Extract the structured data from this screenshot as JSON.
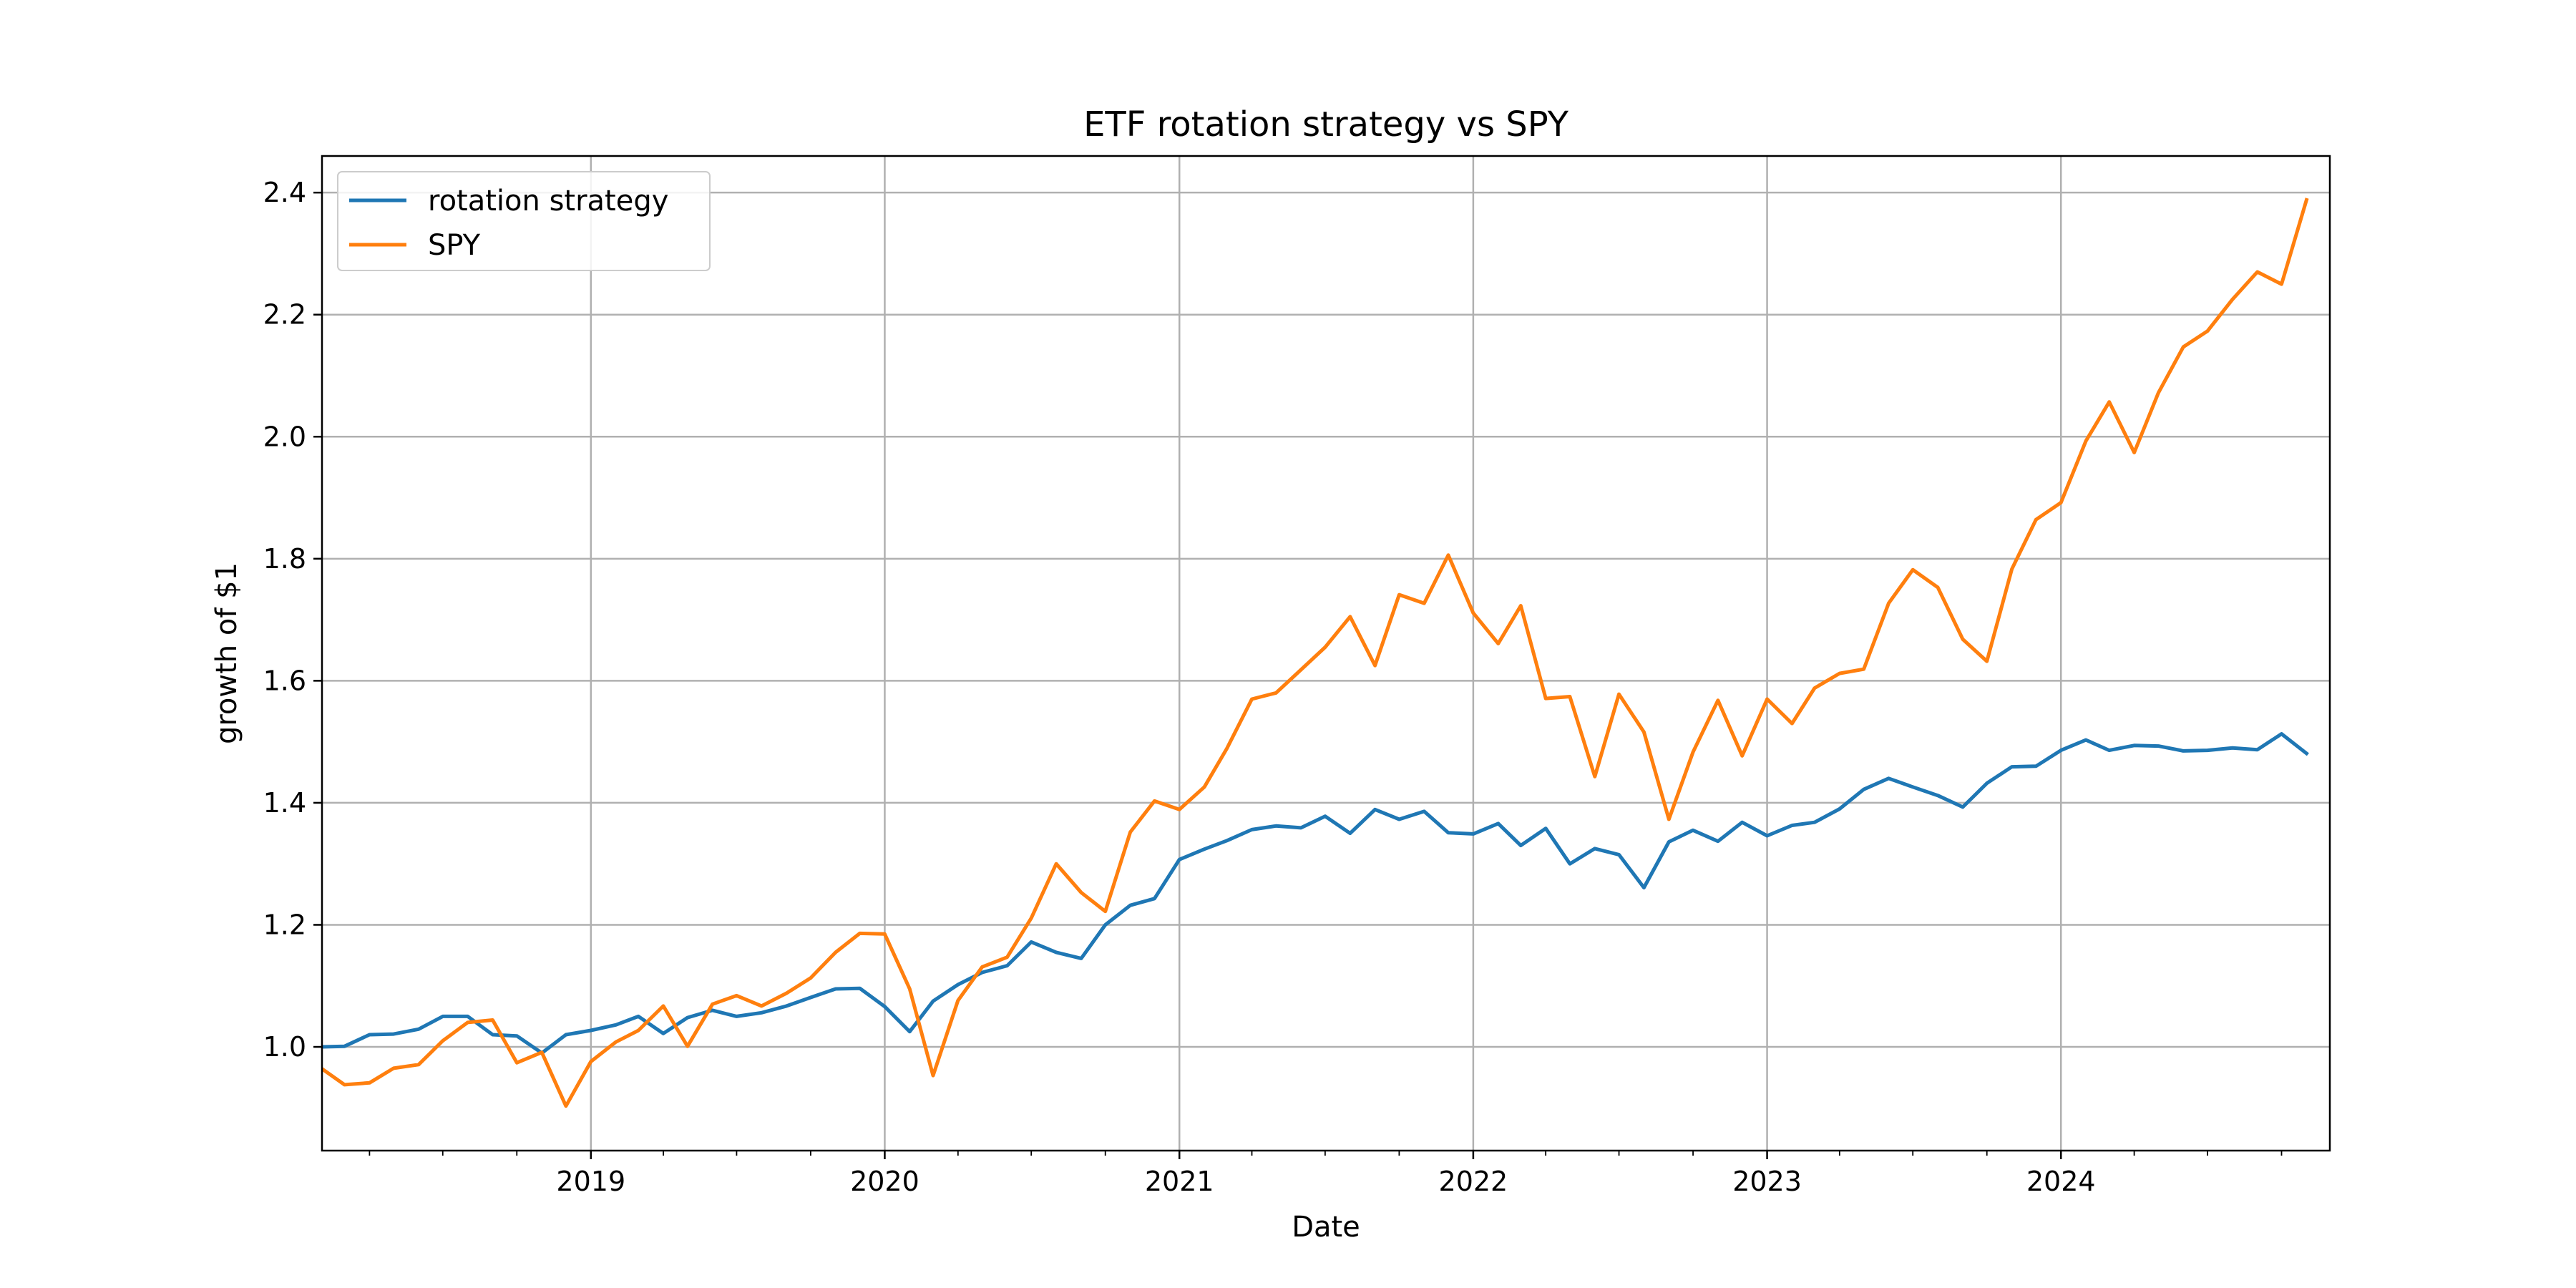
{
  "chart_data": {
    "type": "line",
    "title": "ETF rotation strategy vs SPY",
    "xlabel": "Date",
    "ylabel": "growth of $1",
    "xlim": [
      "2018-02-01",
      "2024-11-30"
    ],
    "ylim": [
      0.83,
      2.46
    ],
    "x_ticks": [
      "2019",
      "2020",
      "2021",
      "2022",
      "2023",
      "2024"
    ],
    "y_ticks": [
      "1.0",
      "1.2",
      "1.4",
      "1.6",
      "1.8",
      "2.0",
      "2.2",
      "2.4"
    ],
    "grid": true,
    "legend_position": "upper left",
    "x": [
      "2018-02",
      "2018-03",
      "2018-04",
      "2018-05",
      "2018-06",
      "2018-07",
      "2018-08",
      "2018-09",
      "2018-10",
      "2018-11",
      "2018-12",
      "2019-01",
      "2019-02",
      "2019-03",
      "2019-04",
      "2019-05",
      "2019-06",
      "2019-07",
      "2019-08",
      "2019-09",
      "2019-10",
      "2019-11",
      "2019-12",
      "2020-01",
      "2020-02",
      "2020-03",
      "2020-04",
      "2020-05",
      "2020-06",
      "2020-07",
      "2020-08",
      "2020-09",
      "2020-10",
      "2020-11",
      "2020-12",
      "2021-01",
      "2021-02",
      "2021-03",
      "2021-04",
      "2021-05",
      "2021-06",
      "2021-07",
      "2021-08",
      "2021-09",
      "2021-10",
      "2021-11",
      "2021-12",
      "2022-01",
      "2022-02",
      "2022-03",
      "2022-04",
      "2022-05",
      "2022-06",
      "2022-07",
      "2022-08",
      "2022-09",
      "2022-10",
      "2022-11",
      "2022-12",
      "2023-01",
      "2023-02",
      "2023-03",
      "2023-04",
      "2023-05",
      "2023-06",
      "2023-07",
      "2023-08",
      "2023-09",
      "2023-10",
      "2023-11",
      "2023-12",
      "2024-01",
      "2024-02",
      "2024-03",
      "2024-04",
      "2024-05",
      "2024-06",
      "2024-07",
      "2024-08",
      "2024-09",
      "2024-10",
      "2024-11"
    ],
    "series": [
      {
        "name": "rotation strategy",
        "color": "#1f77b4",
        "values": [
          1.0,
          1.001,
          1.02,
          1.021,
          1.029,
          1.05,
          1.05,
          1.02,
          1.018,
          0.99,
          1.02,
          1.027,
          1.036,
          1.05,
          1.022,
          1.048,
          1.06,
          1.05,
          1.056,
          1.067,
          1.081,
          1.095,
          1.096,
          1.066,
          1.025,
          1.075,
          1.102,
          1.122,
          1.133,
          1.172,
          1.155,
          1.145,
          1.2,
          1.232,
          1.243,
          1.307,
          1.324,
          1.338,
          1.356,
          1.362,
          1.359,
          1.378,
          1.35,
          1.389,
          1.373,
          1.386,
          1.351,
          1.349,
          1.366,
          1.33,
          1.358,
          1.3,
          1.325,
          1.315,
          1.261,
          1.336,
          1.355,
          1.337,
          1.368,
          1.346,
          1.363,
          1.368,
          1.39,
          1.422,
          1.44,
          1.426,
          1.412,
          1.393,
          1.432,
          1.459,
          1.46,
          1.486,
          1.503,
          1.486,
          1.494,
          1.493,
          1.485,
          1.486,
          1.49,
          1.487,
          1.513,
          1.481
        ]
      },
      {
        "name": "SPY",
        "color": "#ff7f0e",
        "values": [
          0.964,
          0.938,
          0.941,
          0.965,
          0.971,
          1.01,
          1.04,
          1.044,
          0.974,
          0.991,
          0.903,
          0.976,
          1.008,
          1.027,
          1.067,
          1.001,
          1.07,
          1.084,
          1.067,
          1.088,
          1.113,
          1.155,
          1.186,
          1.185,
          1.095,
          0.953,
          1.076,
          1.131,
          1.147,
          1.211,
          1.3,
          1.253,
          1.222,
          1.352,
          1.403,
          1.389,
          1.426,
          1.489,
          1.57,
          1.58,
          1.618,
          1.655,
          1.705,
          1.625,
          1.741,
          1.727,
          1.806,
          1.711,
          1.661,
          1.723,
          1.571,
          1.574,
          1.443,
          1.578,
          1.516,
          1.373,
          1.483,
          1.568,
          1.477,
          1.57,
          1.53,
          1.588,
          1.612,
          1.619,
          1.727,
          1.782,
          1.753,
          1.668,
          1.632,
          1.783,
          1.864,
          1.892,
          1.993,
          2.057,
          1.974,
          2.072,
          2.147,
          2.173,
          2.225,
          2.27,
          2.25,
          2.388
        ]
      }
    ]
  }
}
